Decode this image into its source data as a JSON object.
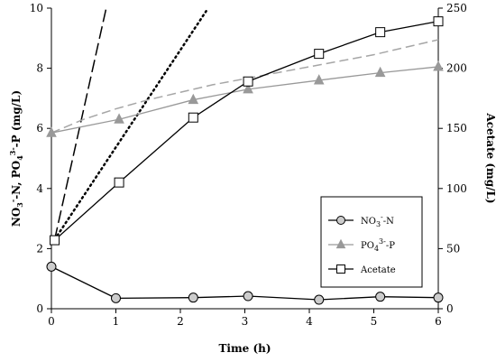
{
  "chart_data": {
    "type": "line",
    "xlabel": "Time (h)",
    "ylabel_left": "NO3--N, PO43--P (mg/L)",
    "ylabel_left_parts": [
      "NO",
      "3",
      "-",
      "-N, PO",
      "4",
      "3-",
      "-P (mg/L)"
    ],
    "ylabel_right": "Acetate (mg/L)",
    "xlim": [
      0,
      6
    ],
    "ylim_left": [
      0,
      10
    ],
    "ylim_right": [
      0,
      250
    ],
    "x_ticks": [
      0,
      1,
      2,
      3,
      4,
      5,
      6
    ],
    "y_left_ticks": [
      0,
      2,
      4,
      6,
      8,
      10
    ],
    "y_right_ticks": [
      0,
      50,
      100,
      150,
      200,
      250
    ],
    "grid": false,
    "legend_position": "lower-right",
    "series": [
      {
        "name": "NO3--N",
        "legend_parts": [
          "NO",
          "3",
          "-",
          "-N"
        ],
        "axis": "left",
        "marker": "circle",
        "color": "#000000",
        "marker_fill": "#cccccc",
        "x": [
          0,
          1,
          2.2,
          3.05,
          4.15,
          5.1,
          6
        ],
        "y": [
          1.4,
          0.35,
          0.37,
          0.42,
          0.3,
          0.4,
          0.37
        ]
      },
      {
        "name": "PO43--P",
        "legend_parts": [
          "PO",
          "4",
          "3-",
          "-P"
        ],
        "axis": "left",
        "marker": "triangle",
        "color": "#999999",
        "marker_fill": "#999999",
        "x": [
          0,
          1.05,
          2.2,
          3.05,
          4.15,
          5.1,
          6
        ],
        "y": [
          5.85,
          6.3,
          6.95,
          7.3,
          7.6,
          7.85,
          8.05
        ]
      },
      {
        "name": "Acetate",
        "legend_parts": [
          "Acetate"
        ],
        "axis": "right",
        "marker": "square",
        "color": "#000000",
        "marker_fill": "#ffffff",
        "x": [
          0.05,
          1.05,
          2.2,
          3.05,
          4.15,
          5.1,
          6
        ],
        "y": [
          57,
          105,
          159,
          189,
          212,
          230,
          239
        ]
      }
    ],
    "fit_lines": [
      {
        "style": "long-dash",
        "axis": "left",
        "color": "#000000",
        "x": [
          0.05,
          0.85
        ],
        "y": [
          2.3,
          10.0
        ]
      },
      {
        "style": "dotted",
        "axis": "left",
        "color": "#000000",
        "x": [
          0.05,
          2.4
        ],
        "y": [
          2.3,
          9.9
        ]
      },
      {
        "style": "dashed-curve",
        "axis": "left",
        "color": "#a6a6a6",
        "x": [
          0,
          0.5,
          1,
          1.5,
          2,
          2.5,
          3,
          3.5,
          4,
          4.5,
          5,
          5.5,
          6
        ],
        "y": [
          5.85,
          6.3,
          6.65,
          6.95,
          7.2,
          7.45,
          7.65,
          7.85,
          8.05,
          8.25,
          8.45,
          8.7,
          8.95
        ]
      }
    ]
  }
}
